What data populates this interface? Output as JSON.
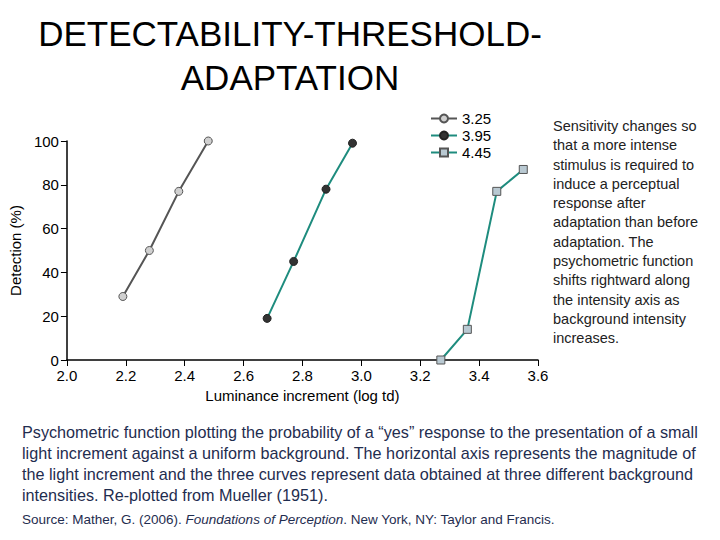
{
  "slide": {
    "title_lines": [
      "DETECTABILITY-THRESHOLD-",
      "ADAPTATION"
    ],
    "side_text": "Sensitivity changes so that a more intense stimulus is required to induce a perceptual response after adaptation than before adaptation. The psychometric function shifts rightward along the intensity axis as background intensity increases.",
    "caption": "Psychometric function plotting the probability of a “yes” response to the presentation of a small light increment against a uniform background. The horizontal axis represents the magnitude of the light increment and the three curves represent data obtained at three different background intensities. Re-plotted from Mueller (1951).",
    "source": [
      "Source: Mather, G. (2006). ",
      "Foundations of Perception",
      ". New York, NY: Taylor and Francis."
    ]
  },
  "chart_data": {
    "type": "line",
    "x_label": "Luminance increment (log td)",
    "y_label": "Detection (%)",
    "series": [
      {
        "name": "3.25",
        "color": "#555555",
        "marker": "circle",
        "x": [
          2.19,
          2.28,
          2.38,
          2.48
        ],
        "values": [
          29,
          50,
          77,
          100
        ]
      },
      {
        "name": "3.95",
        "color": "#1e8c7e",
        "marker": "circle",
        "x": [
          2.68,
          2.77,
          2.88,
          2.97
        ],
        "values": [
          19,
          45,
          78,
          99
        ]
      },
      {
        "name": "4.45",
        "color": "#1e8c7e",
        "marker": "square",
        "x": [
          3.27,
          3.36,
          3.46,
          3.55
        ],
        "values": [
          0,
          14,
          77,
          87
        ]
      }
    ],
    "xlim": [
      2.0,
      3.6
    ],
    "xticks": [
      {
        "value": 2.0,
        "label": "2.0"
      },
      {
        "value": 2.2,
        "label": "2.2"
      },
      {
        "value": 2.4,
        "label": "2.4"
      },
      {
        "value": 2.6,
        "label": "2.6"
      },
      {
        "value": 2.8,
        "label": "2.8"
      },
      {
        "value": 3.0,
        "label": "3.0"
      },
      {
        "value": 3.2,
        "label": "3.2"
      },
      {
        "value": 3.4,
        "label": "3.4"
      },
      {
        "value": 3.6,
        "label": "3.6"
      }
    ],
    "ylim": [
      0,
      100
    ],
    "yticks": [
      0,
      20,
      40,
      60,
      80,
      100
    ],
    "grid": false,
    "legend": "upper right"
  }
}
